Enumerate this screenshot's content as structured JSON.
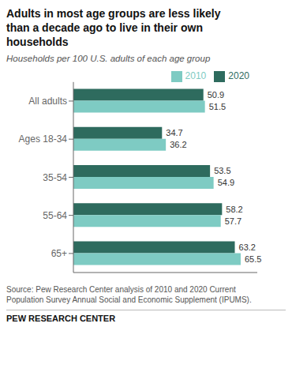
{
  "chart_data": {
    "type": "bar",
    "orientation": "horizontal",
    "title": "Adults in most age groups are less likely\nthan a decade ago to live in their own\nhouseholds",
    "subtitle": "Households per 100 U.S. adults of each age group",
    "annotations": [
      "Source: Pew Research Center analysis of 2010 and 2020 Current\nPopulation Survey Annual Social and Economic Supplement (IPUMS).",
      "PEW RESEARCH CENTER"
    ],
    "categories": [
      "All adults",
      "Ages 18-34",
      "35-54",
      "55-64",
      "65+"
    ],
    "series": [
      {
        "name": "2020",
        "color": "#2e6b5e",
        "values": [
          50.9,
          34.7,
          53.5,
          58.2,
          63.2
        ]
      },
      {
        "name": "2010",
        "color": "#7ecbc3",
        "values": [
          51.5,
          36.2,
          54.9,
          57.7,
          65.5
        ]
      }
    ],
    "xlim": [
      0,
      72
    ],
    "data_labels": true,
    "tick_labels": "y",
    "legend": "top",
    "grid": false
  }
}
